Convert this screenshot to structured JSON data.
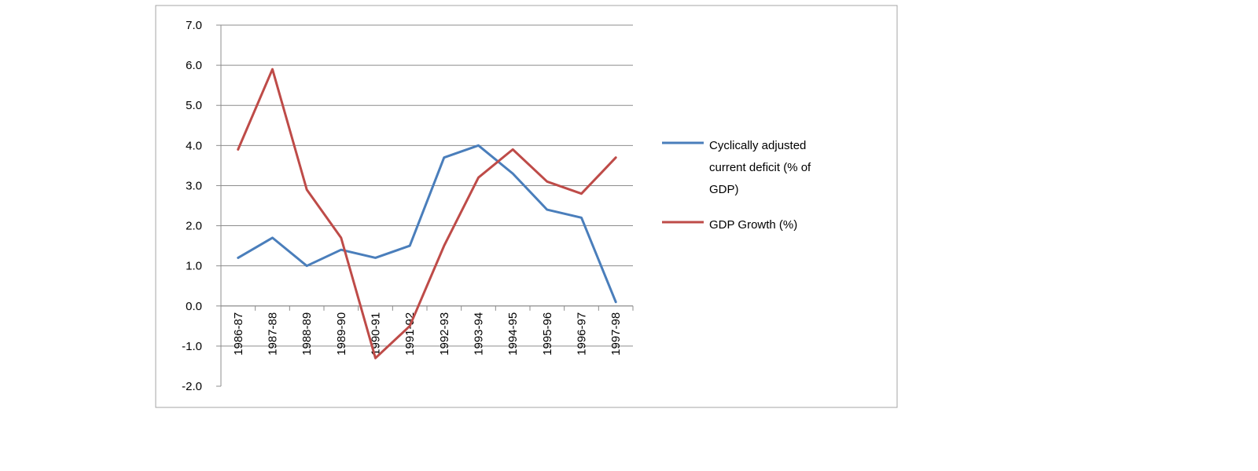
{
  "chart_data": {
    "type": "line",
    "title": "",
    "xlabel": "",
    "ylabel": "",
    "categories": [
      "1986-87",
      "1987-88",
      "1988-89",
      "1989-90",
      "1990-91",
      "1991-92",
      "1992-93",
      "1993-94",
      "1994-95",
      "1995-96",
      "1996-97",
      "1997-98"
    ],
    "ylim": [
      -2.0,
      7.0
    ],
    "yticks": [
      "7.0",
      "6.0",
      "5.0",
      "4.0",
      "3.0",
      "2.0",
      "1.0",
      "0.0",
      "-1.0",
      "-2.0"
    ],
    "grid": true,
    "legend_position": "right",
    "series": [
      {
        "name": "Cyclically adjusted current deficit (% of GDP)",
        "legend_lines": [
          "Cyclically adjusted",
          "current deficit (% of",
          "GDP)"
        ],
        "color": "#4a7ebb",
        "values": [
          1.2,
          1.7,
          1.0,
          1.4,
          1.2,
          1.5,
          3.7,
          4.0,
          3.3,
          2.4,
          2.2,
          0.1
        ]
      },
      {
        "name": "GDP Growth (%)",
        "legend_lines": [
          "GDP Growth (%)"
        ],
        "color": "#be4b48",
        "values": [
          3.9,
          5.9,
          2.9,
          1.7,
          -1.3,
          -0.5,
          1.5,
          3.2,
          3.9,
          3.1,
          2.8,
          3.7
        ]
      }
    ]
  }
}
